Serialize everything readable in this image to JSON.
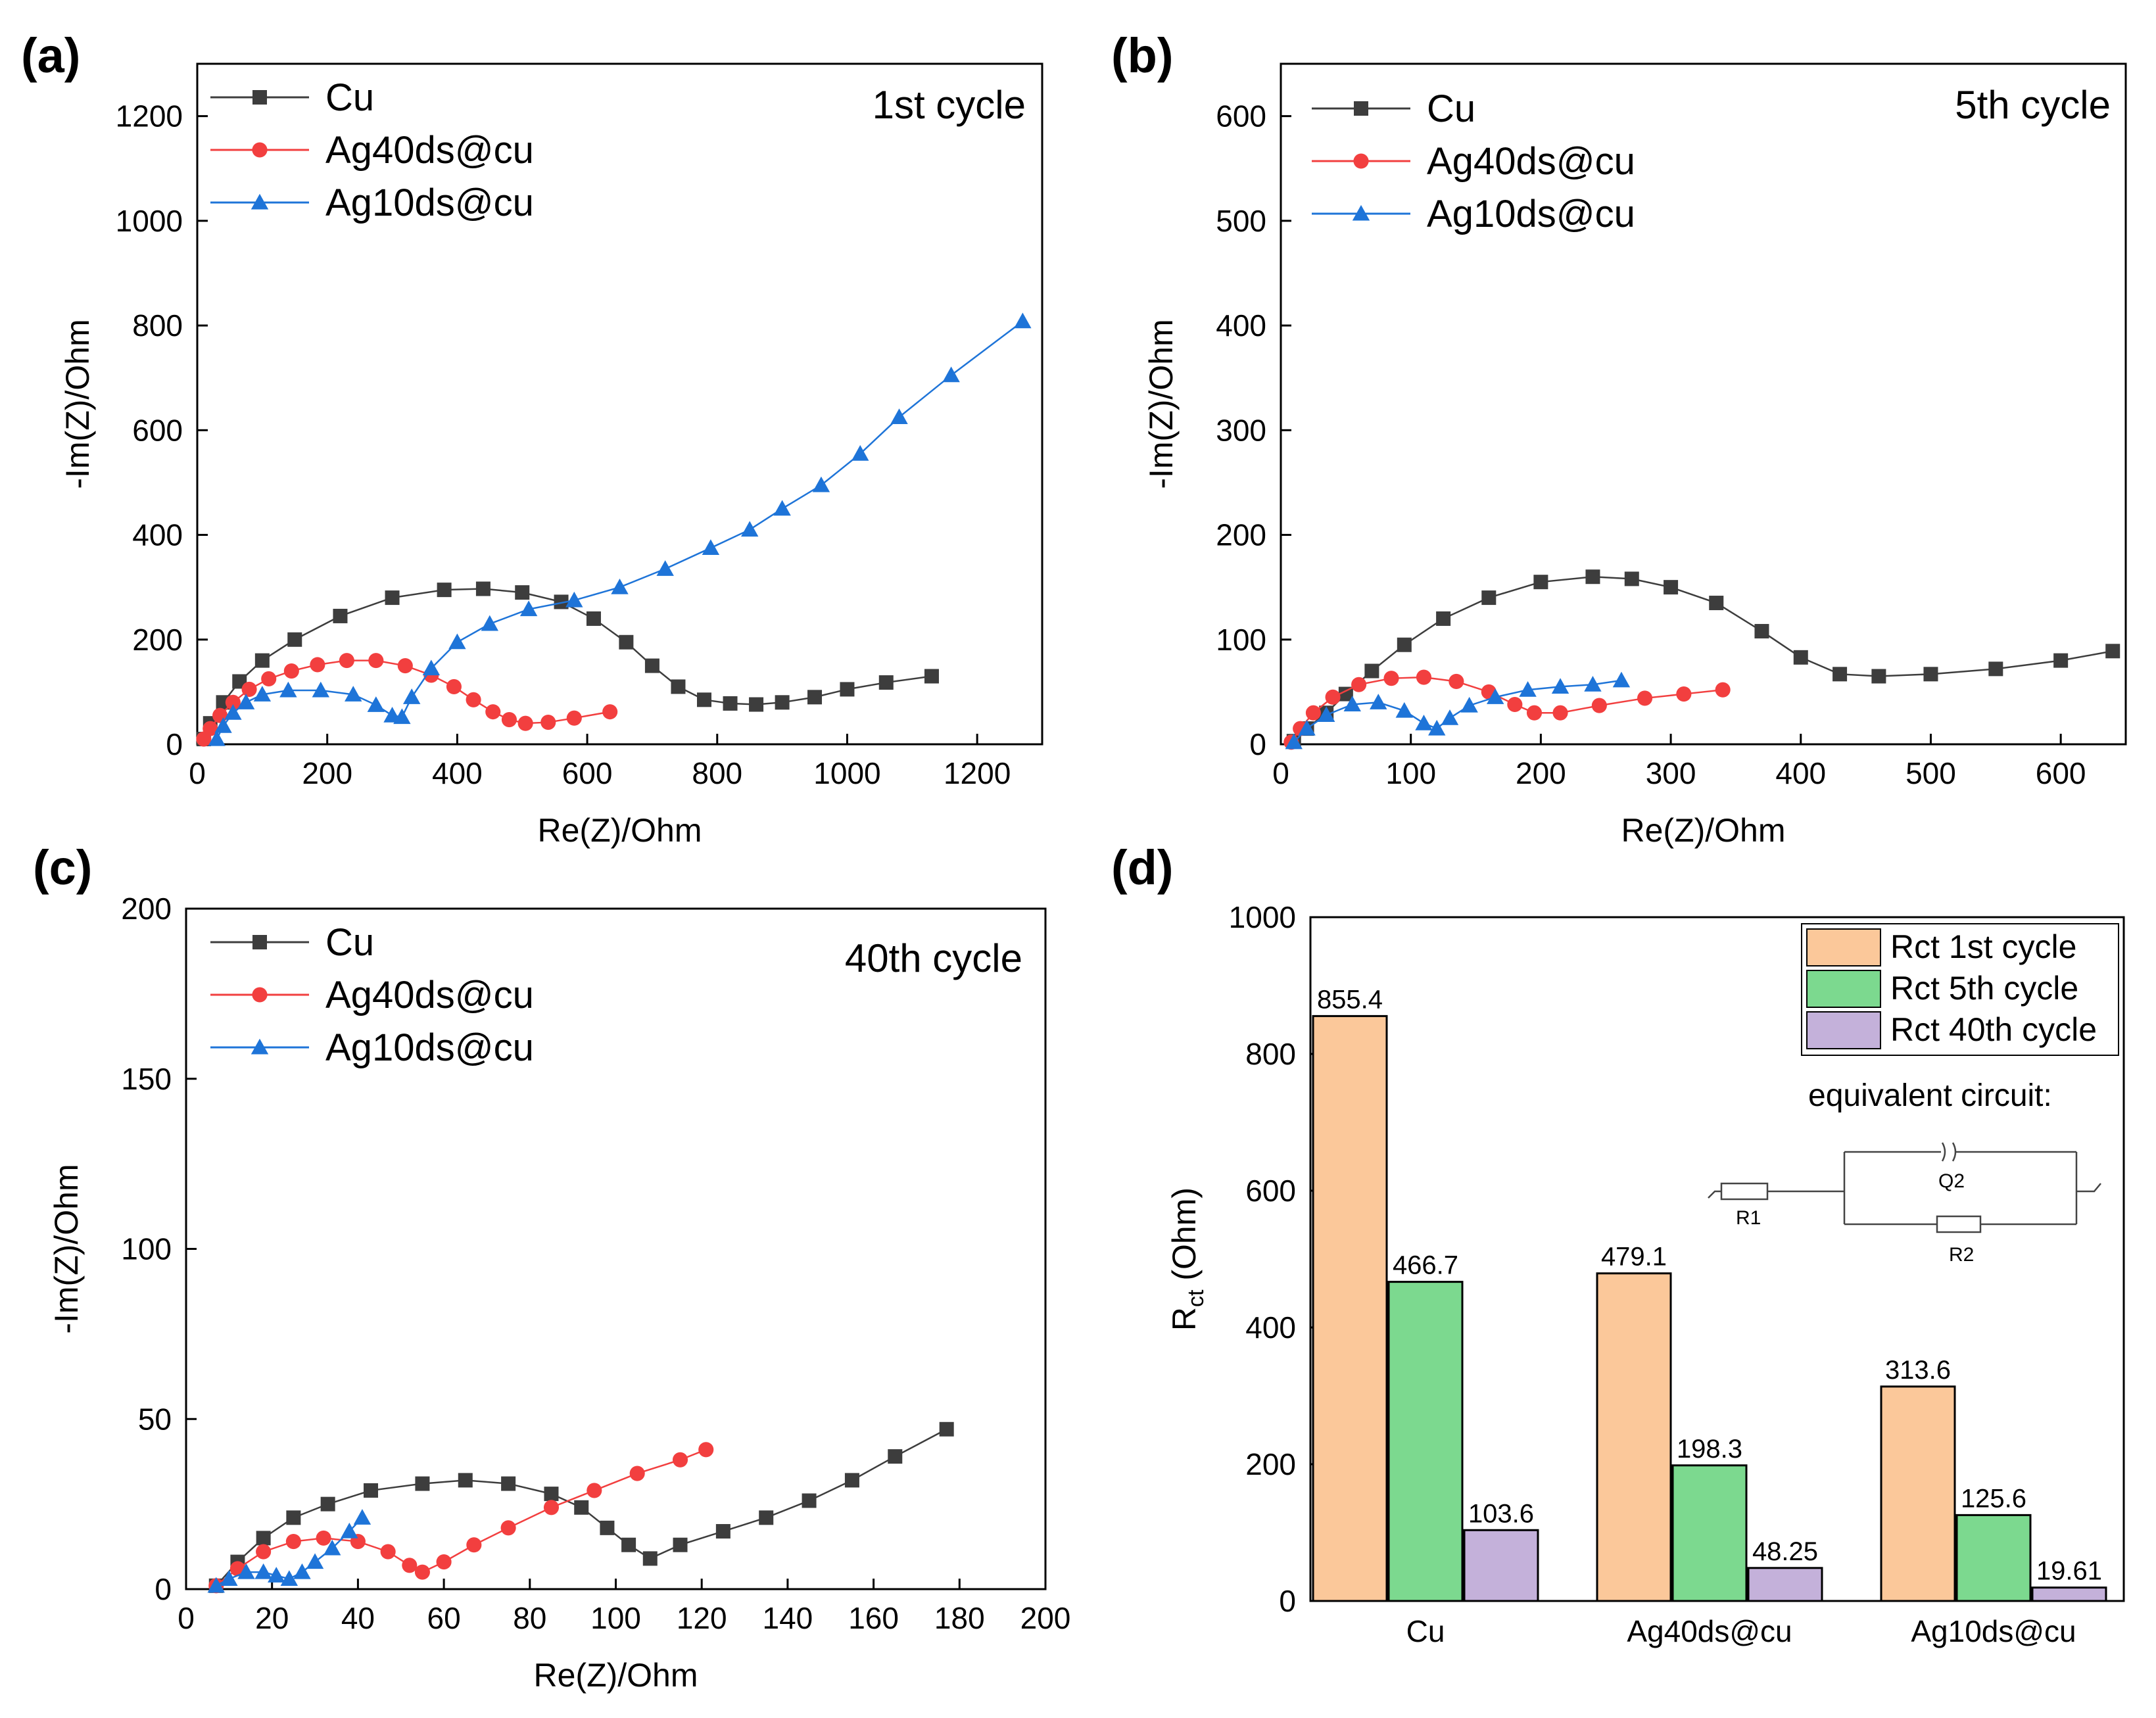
{
  "colors": {
    "cu": "#3d3d3d",
    "ag40": "#f23f3f",
    "ag10": "#1e74d8",
    "bar1": "#fbc89a",
    "bar5": "#7cd98f",
    "bar40": "#c4b1da"
  },
  "chart_data": [
    {
      "type": "scatter",
      "panel": "(a)",
      "annotation": "1st cycle",
      "xlabel": "Re(Z)/Ohm",
      "ylabel": "-Im(Z)/Ohm",
      "xlim": [
        0,
        1300
      ],
      "ylim": [
        0,
        1300
      ],
      "xticks": [
        0,
        200,
        400,
        600,
        800,
        1000,
        1200
      ],
      "yticks": [
        0,
        200,
        400,
        600,
        800,
        1000,
        1200
      ],
      "series": [
        {
          "name": "Cu",
          "marker": "square",
          "color": "#3d3d3d",
          "x": [
            10,
            20,
            40,
            65,
            100,
            150,
            220,
            300,
            380,
            440,
            500,
            560,
            610,
            660,
            700,
            740,
            780,
            820,
            860,
            900,
            950,
            1000,
            1060,
            1130
          ],
          "y": [
            10,
            40,
            80,
            120,
            160,
            200,
            245,
            280,
            295,
            297,
            290,
            272,
            240,
            195,
            150,
            110,
            85,
            78,
            76,
            80,
            90,
            105,
            118,
            130
          ]
        },
        {
          "name": "Ag40ds@cu",
          "marker": "circle",
          "color": "#f23f3f",
          "x": [
            10,
            20,
            35,
            55,
            80,
            110,
            145,
            185,
            230,
            275,
            320,
            360,
            395,
            425,
            455,
            480,
            505,
            540,
            580,
            635
          ],
          "y": [
            10,
            30,
            55,
            80,
            105,
            125,
            140,
            152,
            160,
            160,
            150,
            132,
            110,
            85,
            62,
            47,
            40,
            42,
            50,
            62
          ]
        },
        {
          "name": "Ag10ds@cu",
          "marker": "triangle",
          "color": "#1e74d8",
          "x": [
            30,
            40,
            55,
            75,
            100,
            140,
            190,
            240,
            275,
            300,
            315,
            330,
            360,
            400,
            450,
            510,
            580,
            650,
            720,
            790,
            850,
            900,
            960,
            1020,
            1080,
            1160,
            1270
          ],
          "y": [
            10,
            35,
            60,
            80,
            95,
            103,
            103,
            95,
            75,
            55,
            52,
            90,
            145,
            195,
            230,
            258,
            275,
            300,
            335,
            375,
            410,
            450,
            495,
            555,
            625,
            705,
            808
          ]
        }
      ]
    },
    {
      "type": "scatter",
      "panel": "(b)",
      "annotation": "5th cycle",
      "xlabel": "Re(Z)/Ohm",
      "ylabel": "-Im(Z)/Ohm",
      "xlim": [
        0,
        650
      ],
      "ylim": [
        0,
        650
      ],
      "xticks": [
        0,
        100,
        200,
        300,
        400,
        500,
        600
      ],
      "yticks": [
        0,
        100,
        200,
        300,
        400,
        500,
        600
      ],
      "series": [
        {
          "name": "Cu",
          "marker": "square",
          "color": "#3d3d3d",
          "x": [
            10,
            20,
            35,
            50,
            70,
            95,
            125,
            160,
            200,
            240,
            270,
            300,
            335,
            370,
            400,
            430,
            460,
            500,
            550,
            600,
            640
          ],
          "y": [
            3,
            15,
            30,
            48,
            70,
            95,
            120,
            140,
            155,
            160,
            158,
            150,
            135,
            108,
            83,
            67,
            65,
            67,
            72,
            80,
            89
          ]
        },
        {
          "name": "Ag40ds@cu",
          "marker": "circle",
          "color": "#f23f3f",
          "x": [
            8,
            15,
            25,
            40,
            60,
            85,
            110,
            135,
            160,
            180,
            195,
            215,
            245,
            280,
            310,
            340
          ],
          "y": [
            2,
            15,
            30,
            45,
            57,
            63,
            64,
            60,
            50,
            38,
            30,
            30,
            37,
            44,
            48,
            52
          ]
        },
        {
          "name": "Ag10ds@cu",
          "marker": "triangle",
          "color": "#1e74d8",
          "x": [
            10,
            20,
            35,
            55,
            75,
            95,
            110,
            120,
            130,
            145,
            165,
            190,
            215,
            240,
            262
          ],
          "y": [
            2,
            15,
            28,
            38,
            40,
            32,
            20,
            15,
            25,
            37,
            45,
            52,
            55,
            57,
            61
          ]
        }
      ]
    },
    {
      "type": "scatter",
      "panel": "(c)",
      "annotation": "40th cycle",
      "xlabel": "Re(Z)/Ohm",
      "ylabel": "-Im(Z)/Ohm",
      "xlim": [
        0,
        200
      ],
      "ylim": [
        0,
        200
      ],
      "xticks": [
        0,
        20,
        40,
        60,
        80,
        100,
        120,
        140,
        160,
        180,
        200
      ],
      "yticks": [
        0,
        50,
        100,
        150,
        200
      ],
      "series": [
        {
          "name": "Cu",
          "marker": "square",
          "color": "#3d3d3d",
          "x": [
            7,
            12,
            18,
            25,
            33,
            43,
            55,
            65,
            75,
            85,
            92,
            98,
            103,
            108,
            115,
            125,
            135,
            145,
            155,
            165,
            177
          ],
          "y": [
            1,
            8,
            15,
            21,
            25,
            29,
            31,
            32,
            31,
            28,
            24,
            18,
            13,
            9,
            13,
            17,
            21,
            26,
            32,
            39,
            47
          ]
        },
        {
          "name": "Ag40ds@cu",
          "marker": "circle",
          "color": "#f23f3f",
          "x": [
            7,
            12,
            18,
            25,
            32,
            40,
            47,
            52,
            55,
            60,
            67,
            75,
            85,
            95,
            105,
            115,
            121
          ],
          "y": [
            1,
            6,
            11,
            14,
            15,
            14,
            11,
            7,
            5,
            8,
            13,
            18,
            24,
            29,
            34,
            38,
            41
          ]
        },
        {
          "name": "Ag10ds@cu",
          "marker": "triangle",
          "color": "#1e74d8",
          "x": [
            7,
            10,
            14,
            18,
            21,
            24,
            27,
            30,
            34,
            38,
            41
          ],
          "y": [
            1,
            3,
            5,
            5,
            4,
            3,
            5,
            8,
            12,
            17,
            21
          ]
        }
      ]
    },
    {
      "type": "bar",
      "panel": "(d)",
      "xlabel": "",
      "ylabel_main": "R",
      "ylabel_sub": "ct",
      "ylabel_unit": " (Ohm)",
      "ylim": [
        0,
        1000
      ],
      "yticks": [
        0,
        200,
        400,
        600,
        800,
        1000
      ],
      "categories": [
        "Cu",
        "Ag40ds@cu",
        "Ag10ds@cu"
      ],
      "series": [
        {
          "name": "Rct 1st cycle",
          "color": "#fbc89a",
          "values": [
            855.4,
            479.1,
            313.6
          ],
          "labels": [
            "855.4",
            "479.1",
            "313.6"
          ]
        },
        {
          "name": "Rct 5th cycle",
          "color": "#7cd98f",
          "values": [
            466.7,
            198.3,
            125.6
          ],
          "labels": [
            "466.7",
            "198.3",
            "125.6"
          ]
        },
        {
          "name": "Rct 40th cycle",
          "color": "#c4b1da",
          "values": [
            103.6,
            48.25,
            19.61
          ],
          "labels": [
            "103.6",
            "48.25",
            "19.61"
          ]
        }
      ],
      "inset": {
        "title": "equivalent circuit:",
        "labels": [
          "R1",
          "Q2",
          "R2"
        ]
      }
    }
  ]
}
